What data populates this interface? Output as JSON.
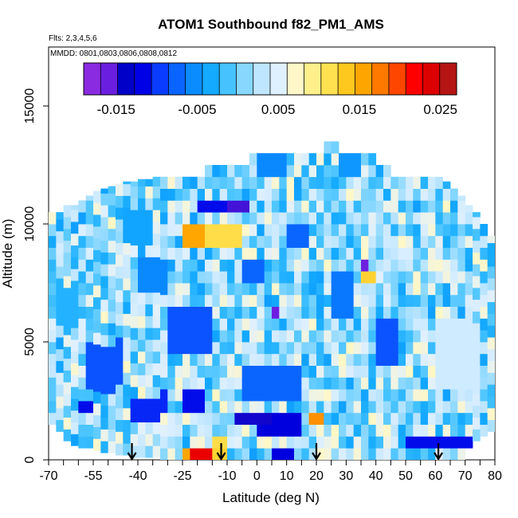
{
  "chart_data": {
    "type": "heatmap",
    "title": "ATOM1 Southbound f82_PM1_AMS",
    "flights_note": "Flts: 2,3,4,5,6",
    "dates_note": "MMDD: 0801,0803,0806,0808,0812",
    "xlabel": "Latitude (deg N)",
    "ylabel": "Altitude (m)",
    "xlim": [
      -70,
      80
    ],
    "ylim": [
      0,
      17500
    ],
    "x_ticks": [
      -70,
      -55,
      -40,
      -25,
      -10,
      0,
      10,
      20,
      30,
      40,
      50,
      60,
      70,
      80
    ],
    "x_minor_ticks": [
      -65,
      -60,
      -50,
      -45,
      -35,
      -30,
      -20,
      -15,
      -5,
      5,
      15,
      25,
      35,
      45,
      55,
      65,
      75
    ],
    "y_ticks": [
      0,
      5000,
      10000,
      15000
    ],
    "colorbar": {
      "range": [
        -0.019,
        0.027
      ],
      "ticks": [
        -0.015,
        -0.005,
        0.005,
        0.015,
        0.025
      ],
      "tick_labels": [
        "-0.015",
        "-0.005",
        "0.005",
        "0.015",
        "0.025"
      ],
      "colors": [
        "#8a2be2",
        "#6a1fe0",
        "#0000c8",
        "#0000e6",
        "#0a3cff",
        "#0a64ff",
        "#0a8cff",
        "#14aaff",
        "#46c3ff",
        "#87d7ff",
        "#bfe6ff",
        "#dff0ff",
        "#fff7c8",
        "#fff08c",
        "#ffe150",
        "#ffc81e",
        "#ffa500",
        "#ff7800",
        "#ff4600",
        "#ff0000",
        "#dc0000",
        "#b41414"
      ]
    },
    "arrows_x": [
      -42,
      -12,
      20,
      61
    ],
    "curtain": {
      "lat_range": [
        -70,
        80
      ],
      "cell_deg": 2.5,
      "alt_step_m": 500,
      "columns": [
        {
          "lat": -68.75,
          "top_m": 10500,
          "base_m": 1500
        },
        {
          "lat": -66.25,
          "top_m": 10500,
          "base_m": 1200
        },
        {
          "lat": -63.75,
          "top_m": 10800,
          "base_m": 800
        },
        {
          "lat": -61.25,
          "top_m": 10800,
          "base_m": 600
        },
        {
          "lat": -58.75,
          "top_m": 11000,
          "base_m": 500
        },
        {
          "lat": -56.25,
          "top_m": 11200,
          "base_m": 500
        },
        {
          "lat": -53.75,
          "top_m": 11400,
          "base_m": 400
        },
        {
          "lat": -51.25,
          "top_m": 11500,
          "base_m": 300
        },
        {
          "lat": -48.75,
          "top_m": 11600,
          "base_m": 300
        },
        {
          "lat": -46.25,
          "top_m": 11700,
          "base_m": 200
        },
        {
          "lat": -43.75,
          "top_m": 11800,
          "base_m": 200
        },
        {
          "lat": -41.25,
          "top_m": 11800,
          "base_m": 100
        },
        {
          "lat": -38.75,
          "top_m": 11900,
          "base_m": 100
        },
        {
          "lat": -36.25,
          "top_m": 11900,
          "base_m": 100
        },
        {
          "lat": -33.75,
          "top_m": 12000,
          "base_m": 100
        },
        {
          "lat": -31.25,
          "top_m": 12000,
          "base_m": 0
        },
        {
          "lat": -28.75,
          "top_m": 12000,
          "base_m": 0
        },
        {
          "lat": -26.25,
          "top_m": 12000,
          "base_m": 0
        },
        {
          "lat": -23.75,
          "top_m": 12000,
          "base_m": 0
        },
        {
          "lat": -21.25,
          "top_m": 12000,
          "base_m": 0
        },
        {
          "lat": -18.75,
          "top_m": 12000,
          "base_m": 0
        },
        {
          "lat": -16.25,
          "top_m": 12500,
          "base_m": 0
        },
        {
          "lat": -13.75,
          "top_m": 12500,
          "base_m": 0
        },
        {
          "lat": -11.25,
          "top_m": 12500,
          "base_m": 0
        },
        {
          "lat": -8.75,
          "top_m": 12500,
          "base_m": 0
        },
        {
          "lat": -6.25,
          "top_m": 12500,
          "base_m": 0
        },
        {
          "lat": -3.75,
          "top_m": 12500,
          "base_m": 0
        },
        {
          "lat": -1.25,
          "top_m": 13000,
          "base_m": 0
        },
        {
          "lat": 1.25,
          "top_m": 13000,
          "base_m": 0
        },
        {
          "lat": 3.75,
          "top_m": 13000,
          "base_m": 0
        },
        {
          "lat": 6.25,
          "top_m": 13000,
          "base_m": 0
        },
        {
          "lat": 8.75,
          "top_m": 13000,
          "base_m": 0
        },
        {
          "lat": 11.25,
          "top_m": 13000,
          "base_m": 0
        },
        {
          "lat": 13.75,
          "top_m": 13000,
          "base_m": 0
        },
        {
          "lat": 16.25,
          "top_m": 13000,
          "base_m": 0
        },
        {
          "lat": 18.75,
          "top_m": 13000,
          "base_m": 0
        },
        {
          "lat": 21.25,
          "top_m": 13000,
          "base_m": 0
        },
        {
          "lat": 23.75,
          "top_m": 13500,
          "base_m": 0
        },
        {
          "lat": 26.25,
          "top_m": 13500,
          "base_m": 0
        },
        {
          "lat": 28.75,
          "top_m": 13000,
          "base_m": 0
        },
        {
          "lat": 31.25,
          "top_m": 13000,
          "base_m": 0
        },
        {
          "lat": 33.75,
          "top_m": 13000,
          "base_m": 0
        },
        {
          "lat": 36.25,
          "top_m": 13000,
          "base_m": 0
        },
        {
          "lat": 38.75,
          "top_m": 13000,
          "base_m": 0
        },
        {
          "lat": 41.25,
          "top_m": 12500,
          "base_m": 0
        },
        {
          "lat": 43.75,
          "top_m": 12500,
          "base_m": 0
        },
        {
          "lat": 46.25,
          "top_m": 12000,
          "base_m": 0
        },
        {
          "lat": 48.75,
          "top_m": 12000,
          "base_m": 0
        },
        {
          "lat": 51.25,
          "top_m": 12000,
          "base_m": 0
        },
        {
          "lat": 53.75,
          "top_m": 12000,
          "base_m": 0
        },
        {
          "lat": 56.25,
          "top_m": 12000,
          "base_m": 0
        },
        {
          "lat": 58.75,
          "top_m": 12000,
          "base_m": 0
        },
        {
          "lat": 61.25,
          "top_m": 12000,
          "base_m": 0
        },
        {
          "lat": 63.75,
          "top_m": 11800,
          "base_m": 0
        },
        {
          "lat": 66.25,
          "top_m": 11500,
          "base_m": 0
        },
        {
          "lat": 68.75,
          "top_m": 11200,
          "base_m": 0
        },
        {
          "lat": 71.25,
          "top_m": 10800,
          "base_m": 500
        },
        {
          "lat": 73.75,
          "top_m": 10500,
          "base_m": 800
        },
        {
          "lat": 76.25,
          "top_m": 10000,
          "base_m": 1000
        },
        {
          "lat": 78.75,
          "top_m": 9500,
          "base_m": 1200
        }
      ],
      "default_value": 0.0015,
      "anomalies": [
        {
          "lat_min": -25,
          "lat_max": -5,
          "alt_min": 9200,
          "alt_max": 10200,
          "value": 0.012,
          "note": "yellow band"
        },
        {
          "lat_min": -24,
          "lat_max": -18,
          "alt_min": 9200,
          "alt_max": 9800,
          "value": 0.016,
          "note": "orange patch"
        },
        {
          "lat_min": -10,
          "lat_max": -3,
          "alt_min": 10500,
          "alt_max": 11000,
          "value": -0.016,
          "note": "dark blue patch"
        },
        {
          "lat_min": -20,
          "lat_max": -10,
          "alt_min": 10500,
          "alt_max": 11000,
          "value": -0.012
        },
        {
          "lat_min": -55,
          "lat_max": -50,
          "alt_min": 3500,
          "alt_max": 4500,
          "value": -0.017,
          "note": "dark blue"
        },
        {
          "lat_min": -57,
          "lat_max": -45,
          "alt_min": 3000,
          "alt_max": 5000,
          "value": -0.009
        },
        {
          "lat_min": -60,
          "lat_max": -55,
          "alt_min": 2200,
          "alt_max": 2600,
          "value": -0.012
        },
        {
          "lat_min": -42,
          "lat_max": -30,
          "alt_min": 1800,
          "alt_max": 2800,
          "value": -0.011
        },
        {
          "lat_min": -25,
          "lat_max": -18,
          "alt_min": 1800,
          "alt_max": 2800,
          "value": -0.012
        },
        {
          "lat_min": -30,
          "lat_max": -15,
          "alt_min": 4500,
          "alt_max": 6500,
          "value": -0.009
        },
        {
          "lat_min": -5,
          "lat_max": 15,
          "alt_min": 2500,
          "alt_max": 4000,
          "value": -0.008
        },
        {
          "lat_min": 0,
          "lat_max": 15,
          "alt_min": 1200,
          "alt_max": 1800,
          "value": -0.013
        },
        {
          "lat_min": -8,
          "lat_max": 5,
          "alt_min": 1300,
          "alt_max": 1800,
          "value": -0.015
        },
        {
          "lat_min": 5,
          "lat_max": 8,
          "alt_min": 5800,
          "alt_max": 6400,
          "value": -0.017,
          "note": "dark blue"
        },
        {
          "lat_min": 18,
          "lat_max": 23,
          "alt_min": 1300,
          "alt_max": 1800,
          "value": 0.017,
          "note": "orange"
        },
        {
          "lat_min": 20,
          "lat_max": 21,
          "alt_min": 1300,
          "alt_max": 1800,
          "value": 0.022
        },
        {
          "lat_min": 34,
          "lat_max": 37,
          "alt_min": 7800,
          "alt_max": 8400,
          "value": -0.017,
          "note": "dark blue"
        },
        {
          "lat_min": 34,
          "lat_max": 40,
          "alt_min": 7300,
          "alt_max": 7800,
          "value": 0.013,
          "note": "yellow"
        },
        {
          "lat_min": 25,
          "lat_max": 33,
          "alt_min": 6000,
          "alt_max": 8000,
          "value": -0.007
        },
        {
          "lat_min": 40,
          "lat_max": 48,
          "alt_min": 4000,
          "alt_max": 6000,
          "value": -0.009
        },
        {
          "lat_min": -22,
          "lat_max": -14,
          "alt_min": 100,
          "alt_max": 500,
          "value": 0.024,
          "note": "red near surface"
        },
        {
          "lat_min": -26,
          "lat_max": -22,
          "alt_min": 100,
          "alt_max": 500,
          "value": 0.016
        },
        {
          "lat_min": -14,
          "lat_max": -11,
          "alt_min": 100,
          "alt_max": 500,
          "value": 0.013
        },
        {
          "lat_min": -14,
          "lat_max": -10,
          "alt_min": 600,
          "alt_max": 1000,
          "value": 0.012
        },
        {
          "lat_min": 4,
          "lat_max": 12,
          "alt_min": 100,
          "alt_max": 500,
          "value": -0.013
        },
        {
          "lat_min": 50,
          "lat_max": 75,
          "alt_min": 500,
          "alt_max": 900,
          "value": -0.012
        },
        {
          "lat_min": -5,
          "lat_max": 2,
          "alt_min": 7500,
          "alt_max": 8500,
          "value": -0.008
        },
        {
          "lat_min": -40,
          "lat_max": -30,
          "alt_min": 7000,
          "alt_max": 8500,
          "value": -0.006
        },
        {
          "lat_min": 10,
          "lat_max": 18,
          "alt_min": 9000,
          "alt_max": 10000,
          "value": -0.008
        },
        {
          "lat_min": -68,
          "lat_max": -60,
          "alt_min": 5500,
          "alt_max": 7500,
          "value": -0.003
        },
        {
          "lat_min": 60,
          "lat_max": 75,
          "alt_min": 3000,
          "alt_max": 6000,
          "value": 0.004
        },
        {
          "lat_min": -45,
          "lat_max": -35,
          "alt_min": 9000,
          "alt_max": 10500,
          "value": -0.004
        },
        {
          "lat_min": 28,
          "lat_max": 35,
          "alt_min": 11800,
          "alt_max": 12800,
          "value": -0.005
        },
        {
          "lat_min": 0,
          "lat_max": 10,
          "alt_min": 11800,
          "alt_max": 12800,
          "value": -0.006
        }
      ]
    }
  }
}
